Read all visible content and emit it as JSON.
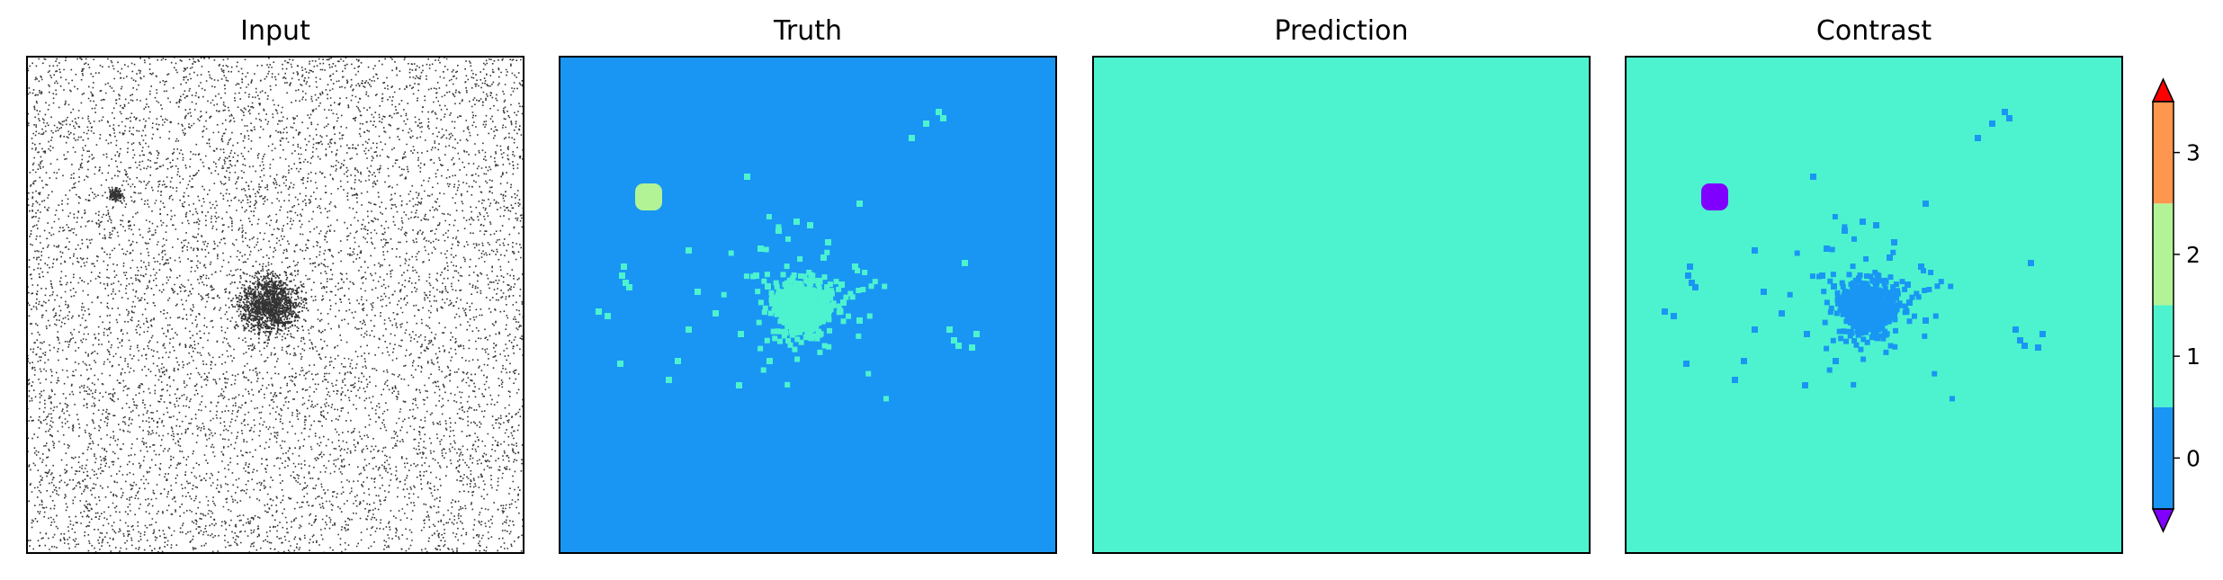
{
  "chart_data": {
    "type": "heatmap",
    "panels": [
      {
        "title": "Input"
      },
      {
        "title": "Truth"
      },
      {
        "title": "Prediction"
      },
      {
        "title": "Contrast"
      }
    ],
    "colorbar": {
      "ticks": [
        0,
        1,
        2,
        3
      ],
      "tick_labels": [
        "0",
        "1",
        "2",
        "3"
      ],
      "range": [
        -0.5,
        3.5
      ],
      "extend": "both",
      "colors": {
        "under": "#8000ff",
        "0": "#1996f3",
        "1": "#4df3ce",
        "2": "#b2f396",
        "3": "#ff964f",
        "over": "#ff0000"
      }
    },
    "colors": {
      "background_class": "#1996f3",
      "foreground_class": "#4df3ce",
      "blob_class": "#b2f396",
      "contrast_blob": "#8000ff",
      "input_dots": "#000000"
    }
  }
}
